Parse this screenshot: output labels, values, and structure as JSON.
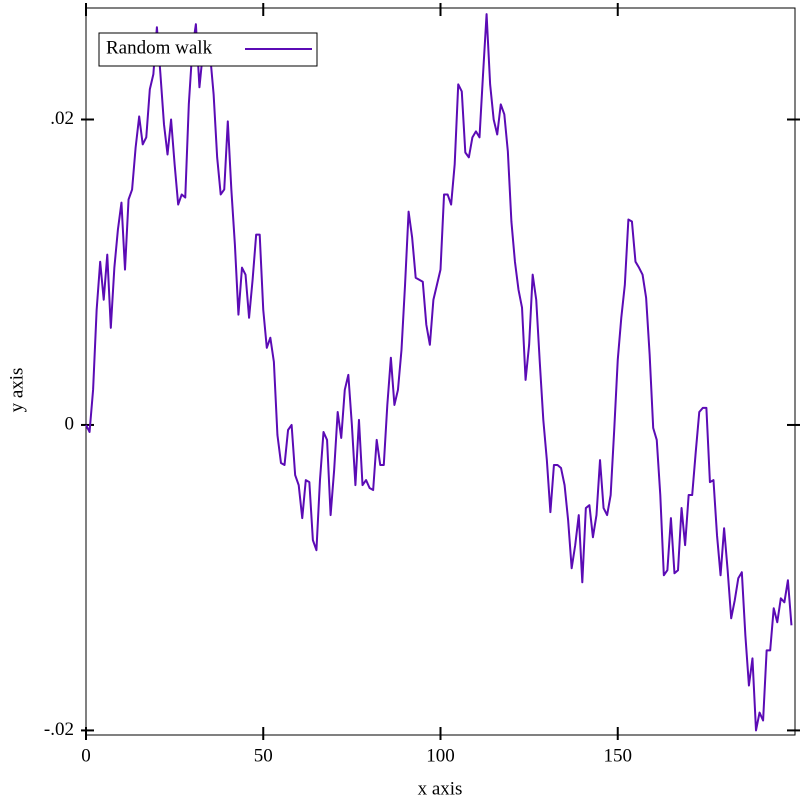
{
  "chart_data": {
    "type": "line",
    "xlabel": "x axis",
    "ylabel": "y axis",
    "legend": "upper left",
    "xlim": [
      0,
      200
    ],
    "ylim": [
      -0.0203,
      0.0273
    ],
    "xticks": [
      0,
      50,
      100,
      150
    ],
    "yticks": [
      {
        "value": -0.02,
        "label": "-.02"
      },
      0,
      {
        "value": 0.02,
        "label": ".02"
      }
    ],
    "x": [
      0,
      1,
      2,
      3,
      4,
      5,
      6,
      7,
      8,
      9,
      10,
      11,
      12,
      13,
      14,
      15,
      16,
      17,
      18,
      19,
      20,
      21,
      22,
      23,
      24,
      25,
      26,
      27,
      28,
      29,
      30,
      31,
      32,
      33,
      34,
      35,
      36,
      37,
      38,
      39,
      40,
      41,
      42,
      43,
      44,
      45,
      46,
      47,
      48,
      49,
      50,
      51,
      52,
      53,
      54,
      55,
      56,
      57,
      58,
      59,
      60,
      61,
      62,
      63,
      64,
      65,
      66,
      67,
      68,
      69,
      70,
      71,
      72,
      73,
      74,
      75,
      76,
      77,
      78,
      79,
      80,
      81,
      82,
      83,
      84,
      85,
      86,
      87,
      88,
      89,
      90,
      91,
      92,
      93,
      94,
      95,
      96,
      97,
      98,
      99,
      100,
      101,
      102,
      103,
      104,
      105,
      106,
      107,
      108,
      109,
      110,
      111,
      112,
      113,
      114,
      115,
      116,
      117,
      118,
      119,
      120,
      121,
      122,
      123,
      124,
      125,
      126,
      127,
      128,
      129,
      130,
      131,
      132,
      133,
      134,
      135,
      136,
      137,
      138,
      139,
      140,
      141,
      142,
      143,
      144,
      145,
      146,
      147,
      148,
      149,
      150,
      151,
      152,
      153,
      154,
      155,
      156,
      157,
      158,
      159,
      160,
      161,
      162,
      163,
      164,
      165,
      166,
      167,
      168,
      169,
      170,
      171,
      172,
      173,
      174,
      175,
      176,
      177,
      178,
      179,
      180,
      181,
      182,
      183,
      184,
      185,
      186,
      187,
      188,
      189,
      190,
      191,
      192,
      193,
      194,
      195,
      196,
      197,
      198,
      199
    ],
    "series": [
      {
        "name": "Random walk",
        "color": "#5b0bb5",
        "values": [
          0,
          -0.00046,
          0.0023,
          0.00754,
          0.01069,
          0.0082,
          0.01115,
          0.00636,
          0.0103,
          0.01279,
          0.01456,
          0.01017,
          0.01476,
          0.01541,
          0.01817,
          0.0202,
          0.01837,
          0.01883,
          0.02197,
          0.02296,
          0.02604,
          0.02296,
          0.01968,
          0.01771,
          0.02,
          0.01706,
          0.01443,
          0.01509,
          0.01489,
          0.02099,
          0.0246,
          0.02624,
          0.02211,
          0.02447,
          0.02381,
          0.02427,
          0.02165,
          0.01752,
          0.01509,
          0.01542,
          0.01988,
          0.01542,
          0.01181,
          0.00722,
          0.0103,
          0.00984,
          0.00702,
          0.00951,
          0.01246,
          0.01246,
          0.00754,
          0.00505,
          0.00571,
          0.00413,
          -0.00066,
          -0.00249,
          -0.00262,
          -0.00033,
          0,
          -0.00328,
          -0.00394,
          -0.0061,
          -0.00361,
          -0.00374,
          -0.00754,
          -0.0082,
          -0.00361,
          -0.00046,
          -0.00098,
          -0.0059,
          -0.00295,
          0.00085,
          -0.00085,
          0.0023,
          0.00328,
          0,
          -0.00394,
          0.00033,
          -0.00394,
          -0.00361,
          -0.00413,
          -0.00426,
          -0.00098,
          -0.00262,
          -0.00262,
          0.00131,
          0.0044,
          0.00131,
          0.0023,
          0.00492,
          0.00918,
          0.01397,
          0.01227,
          0.00964,
          0.00951,
          0.00938,
          0.00656,
          0.00525,
          0.0082,
          0.00918,
          0.01017,
          0.01509,
          0.01509,
          0.01443,
          0.01706,
          0.0223,
          0.02184,
          0.01784,
          0.01752,
          0.01883,
          0.01922,
          0.01883,
          0.02296,
          0.0269,
          0.0223,
          0.02,
          0.01902,
          0.02099,
          0.02034,
          0.01791,
          0.01332,
          0.01069,
          0.00886,
          0.00768,
          0.00295,
          0.00525,
          0.00984,
          0.0082,
          0.00413,
          0.00033,
          -0.0023,
          -0.00571,
          -0.00262,
          -0.00262,
          -0.00282,
          -0.00394,
          -0.00623,
          -0.00938,
          -0.00787,
          -0.0059,
          -0.0103,
          -0.00544,
          -0.00525,
          -0.00735,
          -0.0059,
          -0.0023,
          -0.00544,
          -0.0059,
          -0.00459,
          -0.00033,
          0.00426,
          0.00702,
          0.00918,
          0.01345,
          0.01332,
          0.01069,
          0.0103,
          0.00984,
          0.00833,
          0.00459,
          -0.0002,
          -0.00098,
          -0.00459,
          -0.00984,
          -0.00951,
          -0.0061,
          -0.00971,
          -0.00951,
          -0.00544,
          -0.00787,
          -0.00459,
          -0.00459,
          -0.00177,
          0.00085,
          0.00112,
          0.00112,
          -0.00374,
          -0.00361,
          -0.00722,
          -0.00984,
          -0.00676,
          -0.00951,
          -0.01266,
          -0.01148,
          -0.01004,
          -0.00964,
          -0.01378,
          -0.01706,
          -0.01528,
          -0.02,
          -0.01883,
          -0.01935,
          -0.01476,
          -0.01476,
          -0.012,
          -0.01292,
          -0.01135,
          -0.01161,
          -0.01017,
          -0.01312
        ]
      }
    ]
  }
}
